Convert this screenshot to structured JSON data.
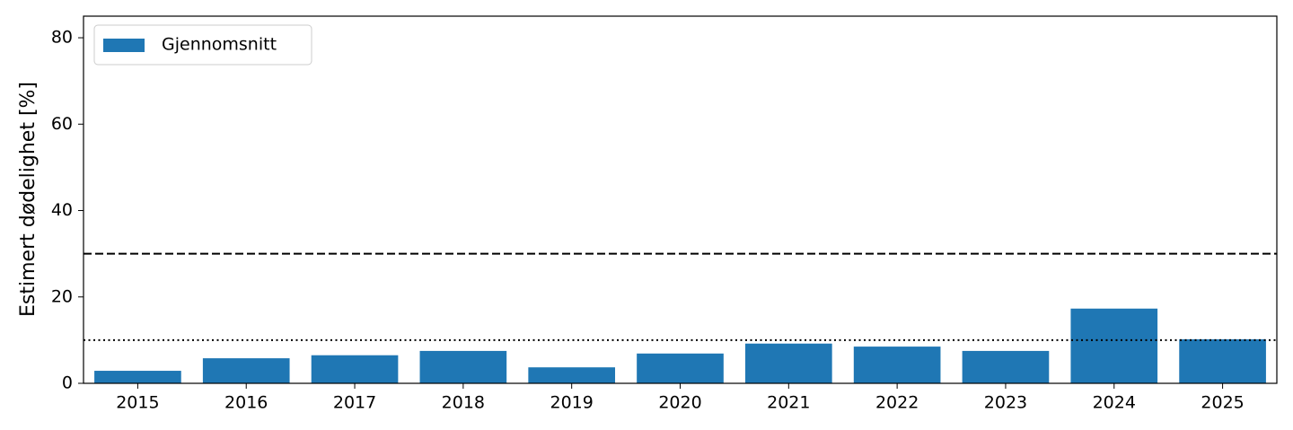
{
  "chart_data": {
    "type": "bar",
    "ylabel": "Estimert dødelighet [%]",
    "categories": [
      "2015",
      "2016",
      "2017",
      "2018",
      "2019",
      "2020",
      "2021",
      "2022",
      "2023",
      "2024",
      "2025"
    ],
    "series": [
      {
        "name": "Gjennomsnitt",
        "color": "#1f77b4",
        "values": [
          2.9,
          5.8,
          6.5,
          7.5,
          3.7,
          6.9,
          9.2,
          8.5,
          7.5,
          17.3,
          10.2
        ]
      }
    ],
    "ylim": [
      0,
      85
    ],
    "yticks": [
      0,
      20,
      40,
      60,
      80
    ],
    "reference_lines": [
      {
        "value": 30,
        "style": "dashed"
      },
      {
        "value": 10,
        "style": "dotted"
      }
    ],
    "legend": "upper left",
    "grid": false
  }
}
